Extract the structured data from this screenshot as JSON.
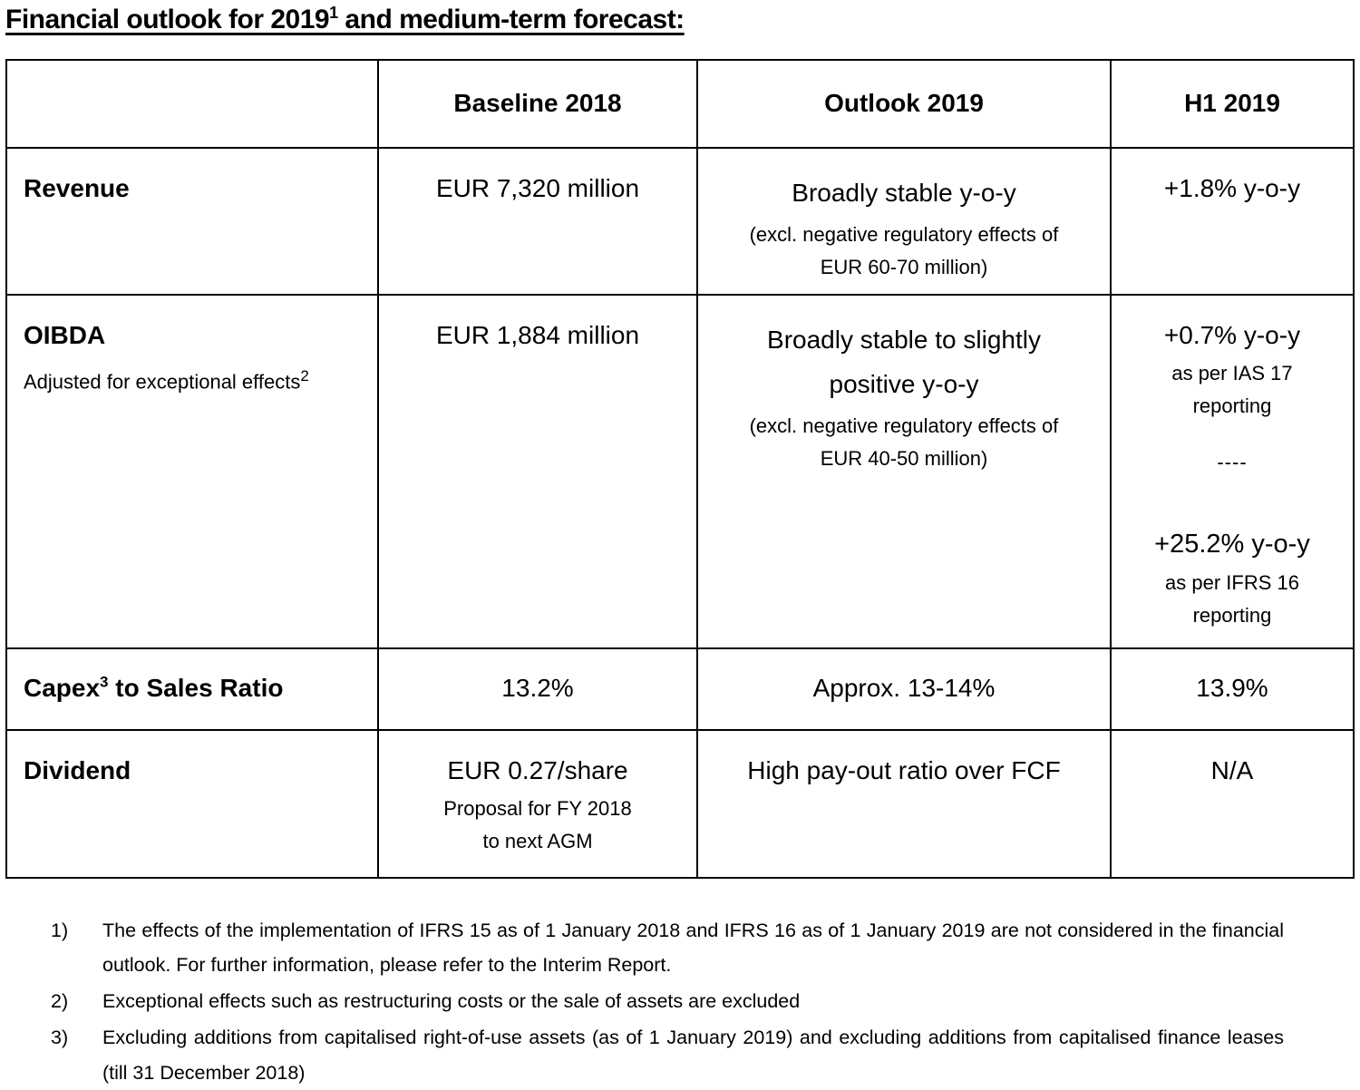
{
  "title": {
    "pre": "Financial outlook for 2019",
    "sup": "1",
    "post": " and medium-term forecast:"
  },
  "table": {
    "col_headers": [
      {
        "label": ""
      },
      {
        "label": "Baseline 2018"
      },
      {
        "label": "Outlook 2019"
      },
      {
        "label": "H1 2019"
      }
    ],
    "rows": {
      "revenue": {
        "label": "Revenue",
        "baseline": "EUR 7,320 million",
        "outlook_main": "Broadly stable y-o-y",
        "outlook_note": "(excl. negative regulatory effects of\nEUR 60-70 million)",
        "h1": "+1.8% y-o-y"
      },
      "oibda": {
        "label": "OIBDA",
        "sublabel": "Adjusted for exceptional effects",
        "sublabel_sup": "2",
        "baseline": "EUR 1,884 million",
        "outlook_main": "Broadly stable to slightly\npositive y-o-y",
        "outlook_note": "(excl. negative regulatory effects of\nEUR 40-50 million)",
        "h1_first": "+0.7% y-o-y",
        "h1_first_note": "as per IAS 17\nreporting",
        "h1_divider": "----",
        "h1_second": "+25.2% y-o-y",
        "h1_second_note": "as per IFRS 16\nreporting"
      },
      "capex": {
        "label_pre": "Capex",
        "label_sup": "3",
        "label_post": " to Sales Ratio",
        "baseline": "13.2%",
        "outlook_main": "Approx. 13-14%",
        "h1": "13.9%"
      },
      "dividend": {
        "label": "Dividend",
        "baseline_main": "EUR 0.27/share",
        "baseline_note": "Proposal for FY 2018\nto next AGM",
        "outlook_main": "High pay-out ratio over FCF",
        "h1": "N/A"
      }
    }
  },
  "footnotes": [
    {
      "num": "1)",
      "text": "The effects of the implementation of IFRS 15 as of 1 January 2018 and IFRS 16 as of 1 January 2019 are not considered in the financial outlook. For further information, please refer to the Interim Report."
    },
    {
      "num": "2)",
      "text": "Exceptional effects such as restructuring costs or the sale of assets are excluded"
    },
    {
      "num": "3)",
      "text": "Excluding additions from capitalised right-of-use assets (as of 1 January 2019) and excluding additions from capitalised finance leases (till 31 December 2018)"
    }
  ]
}
